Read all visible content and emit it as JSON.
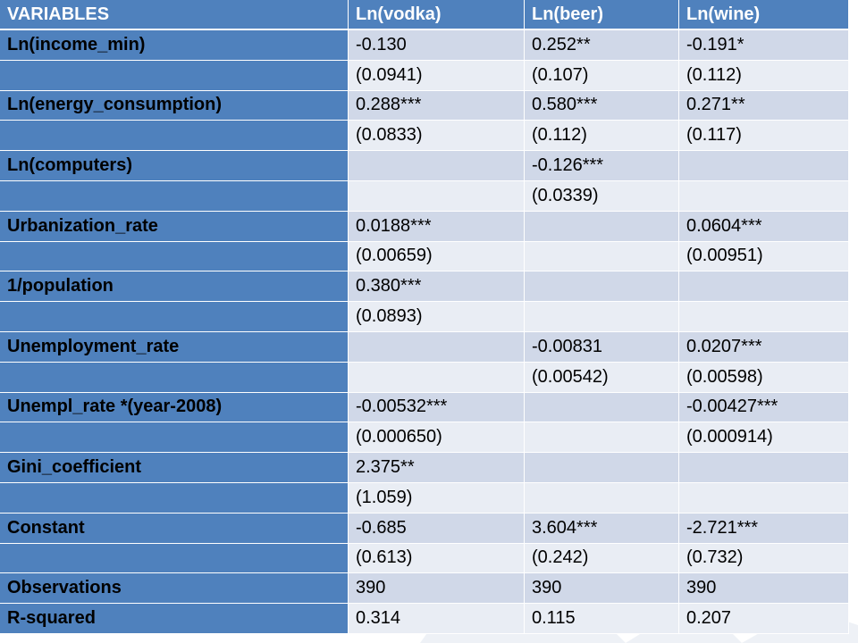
{
  "table": {
    "headers": [
      "VARIABLES",
      "Ln(vodka)",
      "Ln(beer)",
      "Ln(wine)"
    ],
    "rows": [
      {
        "label": "Ln(income_min)",
        "cells": [
          [
            "-0.130",
            "sans"
          ],
          [
            "0.252**",
            "serif"
          ],
          [
            "-0.191*",
            "sans"
          ]
        ]
      },
      {
        "label": "",
        "cells": [
          [
            "(0.0941)",
            "serif-sm"
          ],
          [
            "(0.107)",
            "serif-sm"
          ],
          [
            "(0.112)",
            "sans-sm"
          ]
        ]
      },
      {
        "label": "Ln(energy_consumption)",
        "cells": [
          [
            "0.288***",
            "serif"
          ],
          [
            "0.580***",
            "serif"
          ],
          [
            "0.271**",
            "sans"
          ]
        ]
      },
      {
        "label": "",
        "cells": [
          [
            "(0.0833)",
            "serif-sm"
          ],
          [
            "(0.112)",
            "serif-sm"
          ],
          [
            "(0.117)",
            "sans-sm"
          ]
        ]
      },
      {
        "label": "Ln(computers)",
        "cells": [
          [
            "",
            "sans"
          ],
          [
            "-0.126***",
            "serif"
          ],
          [
            "",
            "sans"
          ]
        ]
      },
      {
        "label": "",
        "cells": [
          [
            "",
            "sans"
          ],
          [
            "(0.0339)",
            "serif-sm"
          ],
          [
            "",
            "sans"
          ]
        ]
      },
      {
        "label": "Urbanization_rate",
        "cells": [
          [
            "0.0188***",
            "serif"
          ],
          [
            "",
            "sans"
          ],
          [
            "0.0604***",
            "sans"
          ]
        ]
      },
      {
        "label": "",
        "cells": [
          [
            "(0.00659)",
            "serif-sm"
          ],
          [
            "",
            "sans"
          ],
          [
            "(0.00951)",
            "sans-sm"
          ]
        ]
      },
      {
        "label": "1/population",
        "cells": [
          [
            "0.380***",
            "serif"
          ],
          [
            "",
            "sans"
          ],
          [
            "",
            "sans"
          ]
        ]
      },
      {
        "label": "",
        "cells": [
          [
            "(0.0893)",
            "serif-sm"
          ],
          [
            "",
            "sans"
          ],
          [
            "",
            "sans"
          ]
        ]
      },
      {
        "label": "Unemployment_rate",
        "cells": [
          [
            "",
            "sans"
          ],
          [
            "-0.00831",
            "serif"
          ],
          [
            "0.0207***",
            "sans"
          ]
        ]
      },
      {
        "label": "",
        "cells": [
          [
            "",
            "sans"
          ],
          [
            "(0.00542)",
            "serif-sm"
          ],
          [
            "(0.00598)",
            "sans-sm"
          ]
        ]
      },
      {
        "label": "Unempl_rate *(year-2008)",
        "cells": [
          [
            "-0.00532***",
            "serif"
          ],
          [
            "",
            "sans"
          ],
          [
            "-0.00427***",
            "sans"
          ]
        ]
      },
      {
        "label": "",
        "cells": [
          [
            "(0.000650)",
            "serif-sm"
          ],
          [
            "",
            "sans"
          ],
          [
            "(0.000914)",
            "sans-sm"
          ]
        ]
      },
      {
        "label": "Gini_coefficient",
        "cells": [
          [
            "2.375**",
            "serif"
          ],
          [
            "",
            "sans"
          ],
          [
            "",
            "sans"
          ]
        ]
      },
      {
        "label": "",
        "cells": [
          [
            "(1.059)",
            "serif"
          ],
          [
            "",
            "sans"
          ],
          [
            "",
            "sans"
          ]
        ]
      },
      {
        "label": "Constant",
        "cells": [
          [
            "-0.685",
            "serif"
          ],
          [
            "3.604***",
            "serif"
          ],
          [
            "-2.721***",
            "sans"
          ]
        ]
      },
      {
        "label": "",
        "cells": [
          [
            "(0.613)",
            "serif-sm"
          ],
          [
            "(0.242)",
            "serif-sm"
          ],
          [
            "(0.732)",
            "sans-sm"
          ]
        ]
      },
      {
        "label": "Observations",
        "cells": [
          [
            "390",
            "sans"
          ],
          [
            "390",
            "sans"
          ],
          [
            "390",
            "sans"
          ]
        ]
      },
      {
        "label": "R-squared",
        "cells": [
          [
            "0.314",
            "sans"
          ],
          [
            "0.115",
            "sans"
          ],
          [
            "0.207",
            "sans"
          ]
        ]
      }
    ]
  },
  "colors": {
    "header_bg": "#4f81bd",
    "row_odd": "#d0d8e8",
    "row_even": "#e9edf4"
  }
}
